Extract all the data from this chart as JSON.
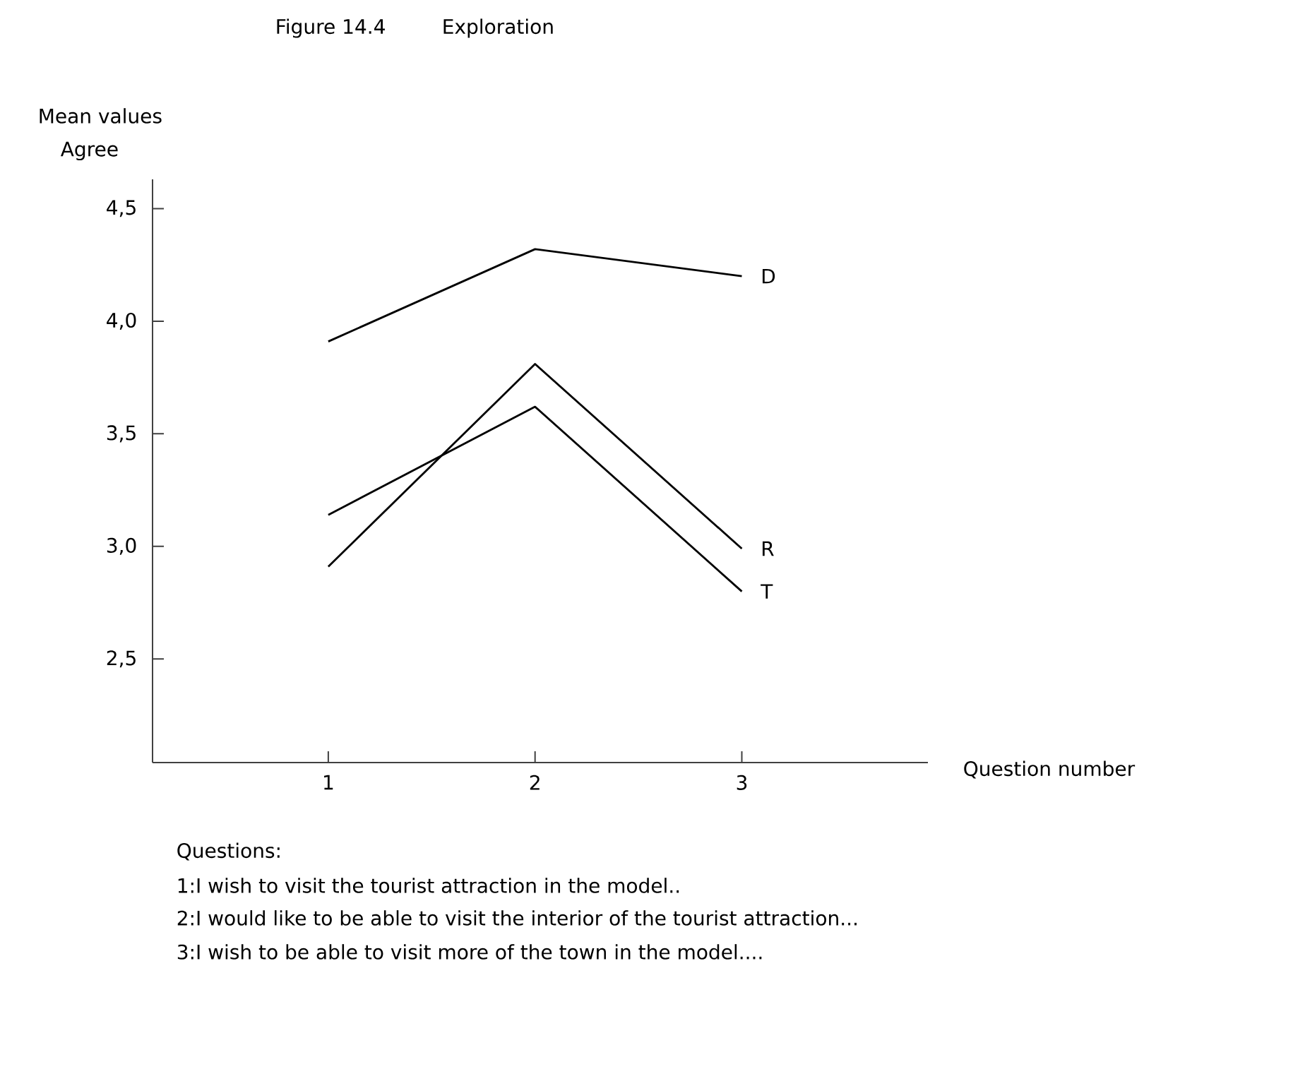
{
  "chart_data": {
    "type": "line",
    "title": "Figure 14.4",
    "subtitle": "Exploration",
    "ylabel": "Mean values",
    "xlabel": "Question number",
    "x": [
      1,
      2,
      3
    ],
    "series": [
      {
        "name": "D",
        "color": "#000000",
        "values": [
          3.91,
          4.32,
          4.2
        ]
      },
      {
        "name": "R",
        "color": "#000000",
        "values": [
          2.91,
          3.81,
          2.99
        ]
      },
      {
        "name": "T",
        "color": "#000000",
        "values": [
          3.14,
          3.62,
          2.8
        ]
      }
    ],
    "xlim": [
      0.15,
      3.9
    ],
    "xticks": [
      1,
      2,
      3
    ],
    "ylim": [
      2.04,
      4.63
    ],
    "yticks": [
      {
        "value": 2.5,
        "label": "2,5"
      },
      {
        "value": 3.0,
        "label": "3,0"
      },
      {
        "value": 3.5,
        "label": "3,5"
      },
      {
        "value": 4.0,
        "label": "4,0"
      },
      {
        "value": 4.5,
        "label": "4,5"
      }
    ],
    "grid": false,
    "marker": "none",
    "line_style": "solid",
    "annotations": [
      "Agree",
      "Questions:",
      "1:I wish to visit the tourist attraction in the model..",
      "2:I would like to be able to visit the interior of the tourist attraction...",
      "3:I wish to be able to visit more of the town in the model...."
    ]
  }
}
